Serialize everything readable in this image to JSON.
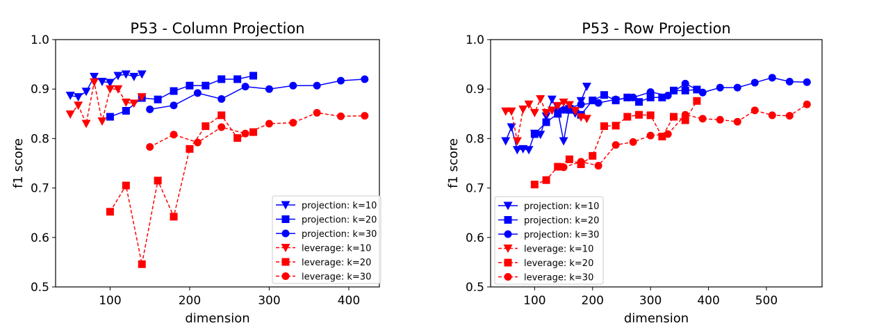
{
  "chart_data": [
    {
      "type": "line",
      "title": "P53 - Column Projection",
      "xlabel": "dimension",
      "ylabel": "f1 score",
      "xlim": [
        31.5,
        438.5
      ],
      "ylim": [
        0.5,
        1.0
      ],
      "xticks": [
        100,
        200,
        300,
        400
      ],
      "yticks": [
        0.5,
        0.6,
        0.7,
        0.8,
        0.9,
        1.0
      ],
      "ytick_labels": [
        "0.5",
        "0.6",
        "0.7",
        "0.8",
        "0.9",
        "1.0"
      ],
      "grid": false,
      "legend_position": "lower-right",
      "series": [
        {
          "name": "projection: k=10",
          "color": "#0000ff",
          "marker": "triangle-down",
          "linestyle": "solid",
          "x": [
            50,
            60,
            70,
            80,
            90,
            100,
            110,
            120,
            130,
            140
          ],
          "y": [
            0.887,
            0.884,
            0.895,
            0.925,
            0.915,
            0.913,
            0.927,
            0.93,
            0.925,
            0.93
          ]
        },
        {
          "name": "projection: k=20",
          "color": "#0000ff",
          "marker": "square",
          "linestyle": "solid",
          "x": [
            100,
            120,
            140,
            160,
            180,
            200,
            220,
            240,
            260,
            280
          ],
          "y": [
            0.844,
            0.856,
            0.882,
            0.879,
            0.896,
            0.907,
            0.907,
            0.92,
            0.92,
            0.927
          ]
        },
        {
          "name": "projection: k=30",
          "color": "#0000ff",
          "marker": "circle",
          "linestyle": "solid",
          "x": [
            150,
            180,
            210,
            240,
            270,
            300,
            330,
            360,
            390,
            420
          ],
          "y": [
            0.859,
            0.867,
            0.892,
            0.88,
            0.905,
            0.9,
            0.907,
            0.907,
            0.917,
            0.92
          ]
        },
        {
          "name": "leverage: k=10",
          "color": "#ff0000",
          "marker": "triangle-down",
          "linestyle": "dashed",
          "x": [
            50,
            60,
            70,
            80,
            90,
            100,
            110,
            120,
            130,
            140
          ],
          "y": [
            0.849,
            0.867,
            0.83,
            0.914,
            0.835,
            0.9,
            0.9,
            0.873,
            0.871,
            0.884
          ]
        },
        {
          "name": "leverage: k=20",
          "color": "#ff0000",
          "marker": "square",
          "linestyle": "dashed",
          "x": [
            100,
            120,
            140,
            160,
            180,
            200,
            220,
            240,
            260,
            280
          ],
          "y": [
            0.652,
            0.705,
            0.546,
            0.715,
            0.642,
            0.779,
            0.825,
            0.847,
            0.801,
            0.813
          ]
        },
        {
          "name": "leverage: k=30",
          "color": "#ff0000",
          "marker": "circle",
          "linestyle": "dashed",
          "x": [
            150,
            180,
            210,
            240,
            270,
            300,
            330,
            360,
            390,
            420
          ],
          "y": [
            0.783,
            0.808,
            0.792,
            0.823,
            0.81,
            0.83,
            0.832,
            0.852,
            0.845,
            0.846
          ]
        }
      ]
    },
    {
      "type": "line",
      "title": "P53 - Row Projection",
      "xlabel": "dimension",
      "ylabel": "f1 score",
      "xlim": [
        24,
        596
      ],
      "ylim": [
        0.5,
        1.0
      ],
      "xticks": [
        100,
        200,
        300,
        400,
        500
      ],
      "yticks": [
        0.5,
        0.6,
        0.7,
        0.8,
        0.9,
        1.0
      ],
      "ytick_labels": [
        "0.5",
        "0.6",
        "0.7",
        "0.8",
        "0.9",
        "1.0"
      ],
      "grid": false,
      "legend_position": "lower-left",
      "series": [
        {
          "name": "projection: k=10",
          "color": "#0000ff",
          "marker": "triangle-down",
          "linestyle": "solid",
          "x": [
            50,
            60,
            70,
            80,
            90,
            100,
            110,
            120,
            130,
            140,
            150,
            160,
            170,
            180,
            190
          ],
          "y": [
            0.795,
            0.823,
            0.777,
            0.779,
            0.777,
            0.81,
            0.808,
            0.845,
            0.879,
            0.855,
            0.795,
            0.86,
            0.851,
            0.876,
            0.905
          ]
        },
        {
          "name": "projection: k=20",
          "color": "#0000ff",
          "marker": "square",
          "linestyle": "solid",
          "x": [
            100,
            120,
            140,
            160,
            180,
            200,
            220,
            240,
            260,
            280,
            300,
            320,
            340,
            360,
            380
          ],
          "y": [
            0.809,
            0.833,
            0.85,
            0.858,
            0.848,
            0.877,
            0.888,
            0.877,
            0.883,
            0.874,
            0.883,
            0.883,
            0.897,
            0.897,
            0.899
          ]
        },
        {
          "name": "projection: k=30",
          "color": "#0000ff",
          "marker": "circle",
          "linestyle": "solid",
          "x": [
            150,
            180,
            210,
            240,
            270,
            300,
            330,
            360,
            390,
            420,
            450,
            480,
            510,
            540,
            570
          ],
          "y": [
            0.858,
            0.869,
            0.872,
            0.879,
            0.883,
            0.894,
            0.887,
            0.911,
            0.893,
            0.903,
            0.903,
            0.913,
            0.923,
            0.915,
            0.914
          ]
        },
        {
          "name": "leverage: k=10",
          "color": "#ff0000",
          "marker": "triangle-down",
          "linestyle": "dashed",
          "x": [
            50,
            60,
            70,
            80,
            90,
            100,
            110,
            120,
            130,
            140,
            150,
            160,
            170,
            180,
            190
          ],
          "y": [
            0.855,
            0.855,
            0.795,
            0.859,
            0.869,
            0.852,
            0.88,
            0.852,
            0.857,
            0.866,
            0.873,
            0.868,
            0.856,
            0.843,
            0.84
          ]
        },
        {
          "name": "leverage: k=20",
          "color": "#ff0000",
          "marker": "square",
          "linestyle": "dashed",
          "x": [
            100,
            120,
            140,
            160,
            180,
            200,
            220,
            240,
            260,
            280,
            300,
            320,
            340,
            360,
            380
          ],
          "y": [
            0.707,
            0.716,
            0.743,
            0.758,
            0.748,
            0.765,
            0.825,
            0.826,
            0.844,
            0.848,
            0.847,
            0.804,
            0.844,
            0.837,
            0.876
          ]
        },
        {
          "name": "leverage: k=30",
          "color": "#ff0000",
          "marker": "circle",
          "linestyle": "dashed",
          "x": [
            150,
            180,
            210,
            240,
            270,
            300,
            330,
            360,
            390,
            420,
            450,
            480,
            510,
            540,
            570
          ],
          "y": [
            0.742,
            0.753,
            0.745,
            0.787,
            0.793,
            0.806,
            0.809,
            0.848,
            0.84,
            0.838,
            0.834,
            0.857,
            0.847,
            0.846,
            0.869
          ]
        }
      ]
    }
  ]
}
